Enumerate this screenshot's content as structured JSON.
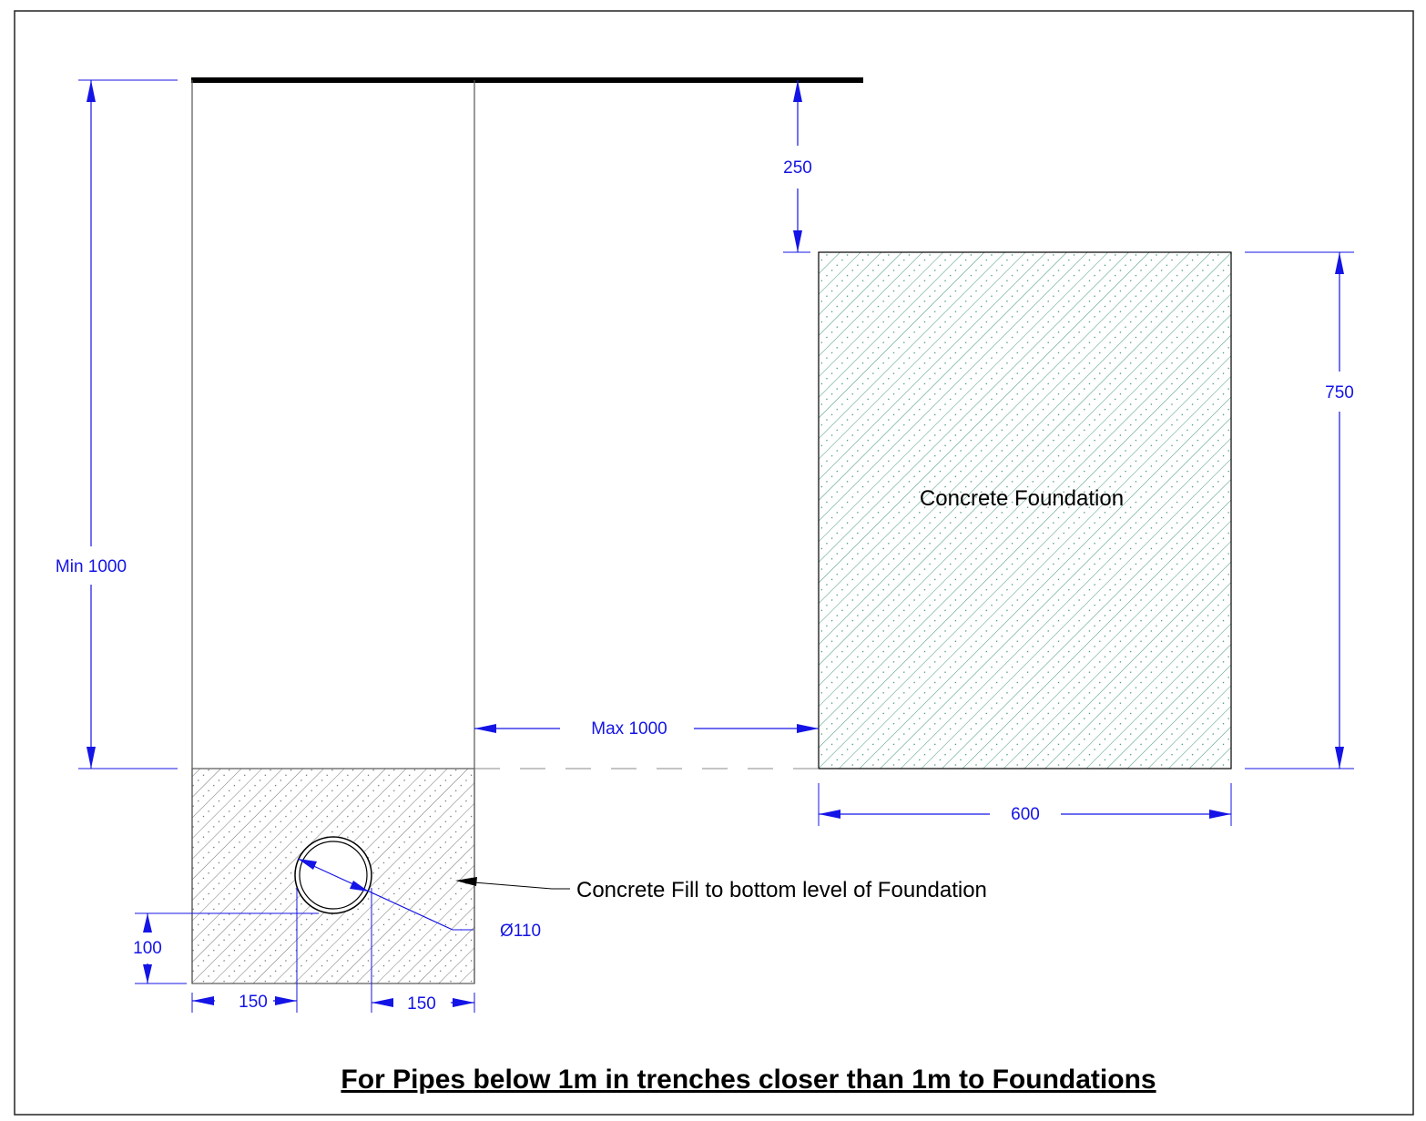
{
  "colors": {
    "dimension": "#1414e6",
    "outline": "#000000",
    "foundation_hatch": "#2e8b72",
    "fill_hatch": "#555555",
    "border": "#222222"
  },
  "labels": {
    "foundation": "Concrete Foundation",
    "concrete_fill_note": "Concrete Fill to bottom level of Foundation",
    "title": "For Pipes below 1m in trenches closer than 1m to Foundations"
  },
  "dimensions": {
    "top_gap": "250",
    "foundation_height": "750",
    "trench_depth": "Min 1000",
    "max_distance": "Max 1000",
    "foundation_width": "600",
    "pipe_diameter": "Ø110",
    "pipe_bed": "100",
    "pipe_left_clearance": "150",
    "pipe_right_clearance": "150"
  }
}
